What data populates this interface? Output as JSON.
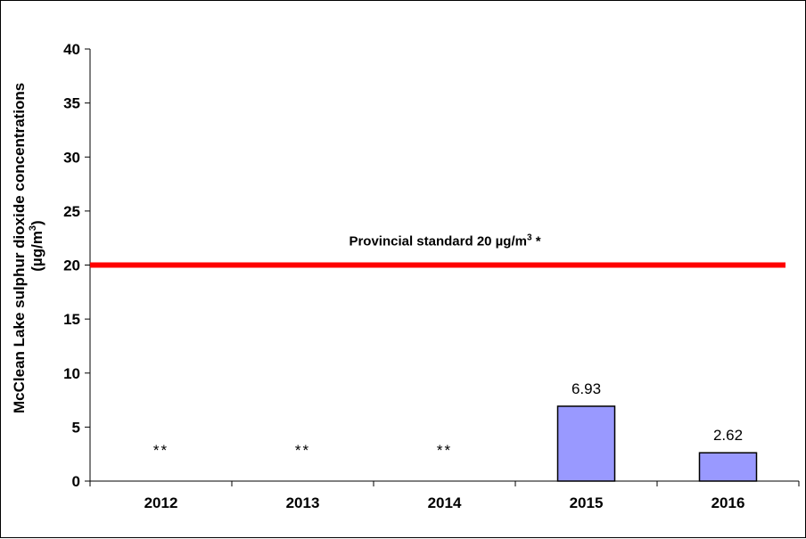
{
  "chart_data": {
    "type": "bar",
    "categories": [
      "2012",
      "2013",
      "2014",
      "2015",
      "2016"
    ],
    "values": [
      null,
      null,
      null,
      6.93,
      2.62
    ],
    "value_labels": [
      "**",
      "**",
      "**",
      "6.93",
      "2.62"
    ],
    "ylabel_line1": "McClean Lake sulphur dioxide concentrations",
    "ylabel_line2": "(µg/m",
    "ylabel_sup": "3",
    "ylabel_close": ")",
    "ylim": [
      0,
      40
    ],
    "yticks": [
      0,
      5,
      10,
      15,
      20,
      25,
      30,
      35,
      40
    ],
    "bar_color": "#9999ff",
    "reference_line": {
      "value": 20,
      "color": "#ff0000",
      "label": "Provincial standard 20 µg/m",
      "label_sup": "3",
      "label_suffix": " *"
    },
    "grid": false,
    "legend": "none"
  }
}
